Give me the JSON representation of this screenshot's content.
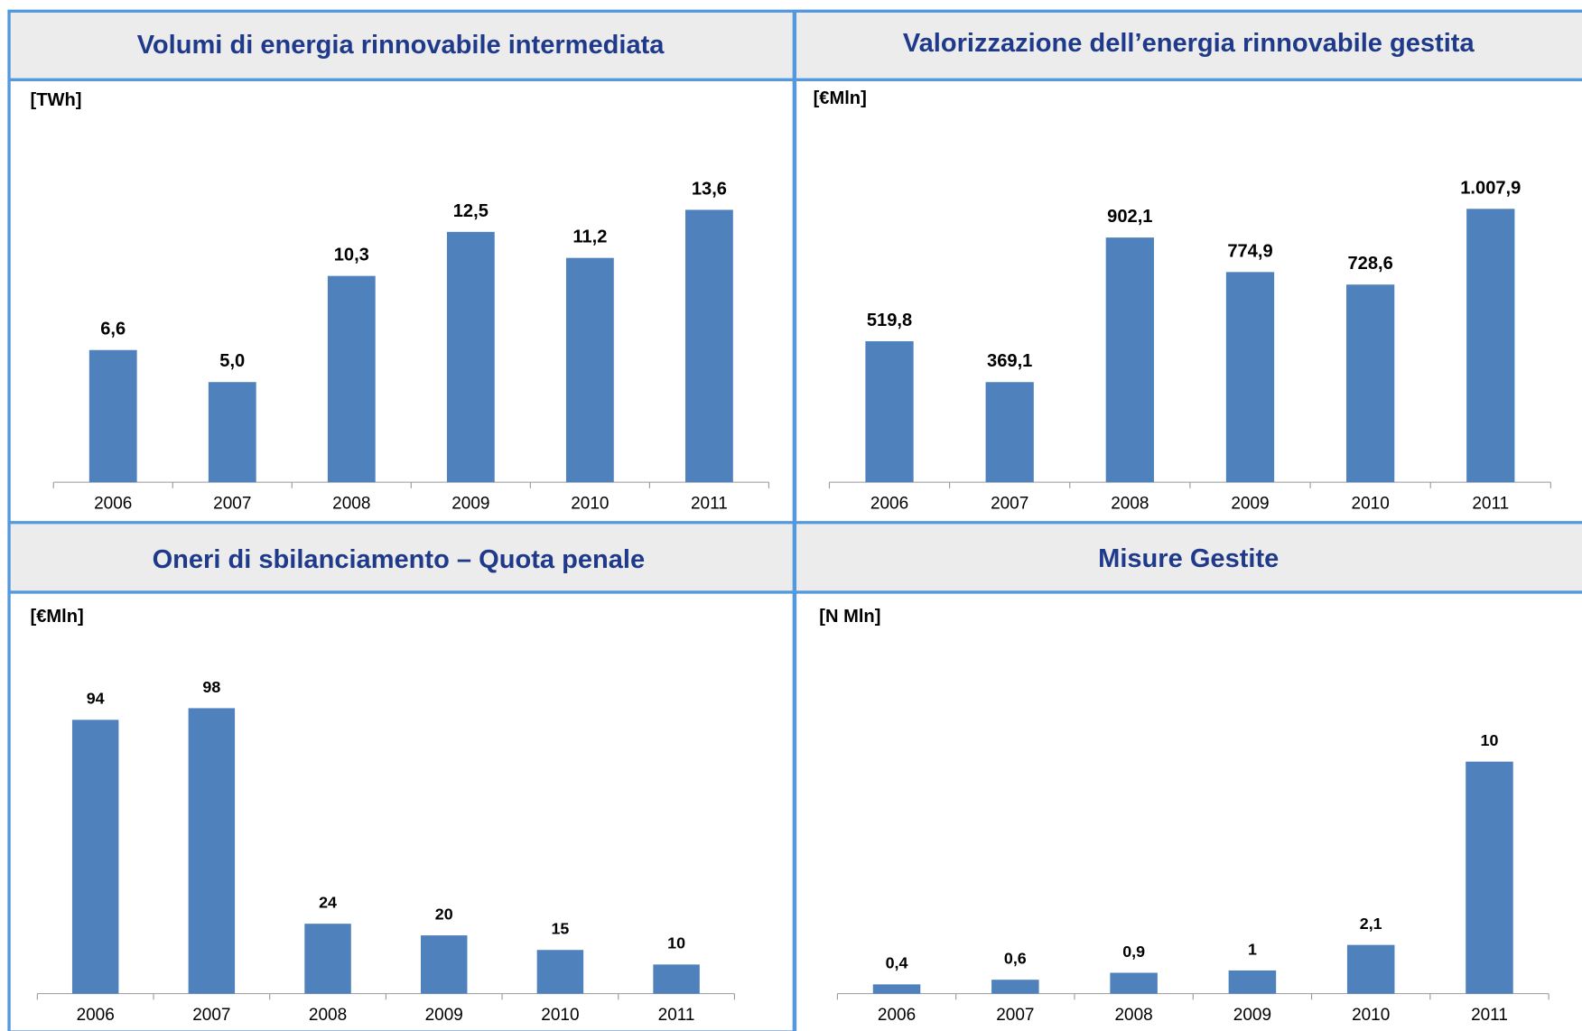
{
  "chart_data": [
    {
      "type": "bar",
      "title": "Volumi di energia rinnovabile intermediata",
      "unit_label": "[TWh]",
      "categories": [
        "2006",
        "2007",
        "2008",
        "2009",
        "2010",
        "2011"
      ],
      "values": [
        6.6,
        5.0,
        10.3,
        12.5,
        11.2,
        13.6
      ],
      "value_labels": [
        "6,6",
        "5,0",
        "10,3",
        "12,5",
        "11,2",
        "13,6"
      ],
      "color": "#4f81bd"
    },
    {
      "type": "bar",
      "title": "Valorizzazione dell’energia rinnovabile gestita",
      "unit_label": "[€Mln]",
      "categories": [
        "2006",
        "2007",
        "2008",
        "2009",
        "2010",
        "2011"
      ],
      "values": [
        519.8,
        369.1,
        902.1,
        774.9,
        728.6,
        1007.9
      ],
      "value_labels": [
        "519,8",
        "369,1",
        "902,1",
        "774,9",
        "728,6",
        "1.007,9"
      ],
      "color": "#4f81bd"
    },
    {
      "type": "bar",
      "title": "Oneri di sbilanciamento – Quota penale",
      "unit_label": "[€Mln]",
      "categories": [
        "2006",
        "2007",
        "2008",
        "2009",
        "2010",
        "2011"
      ],
      "values": [
        94,
        98,
        24,
        20,
        15,
        10
      ],
      "color": "#4f81bd"
    },
    {
      "type": "bar",
      "title": "Misure Gestite",
      "unit_label": "[N Mln]",
      "categories": [
        "2006",
        "2007",
        "2008",
        "2009",
        "2010",
        "2011"
      ],
      "values": [
        0.4,
        0.6,
        0.9,
        1,
        2.1,
        10
      ],
      "value_labels": [
        "0,4",
        "0,6",
        "0,9",
        "1",
        "2,1",
        "10"
      ],
      "color": "#4f81bd"
    }
  ]
}
